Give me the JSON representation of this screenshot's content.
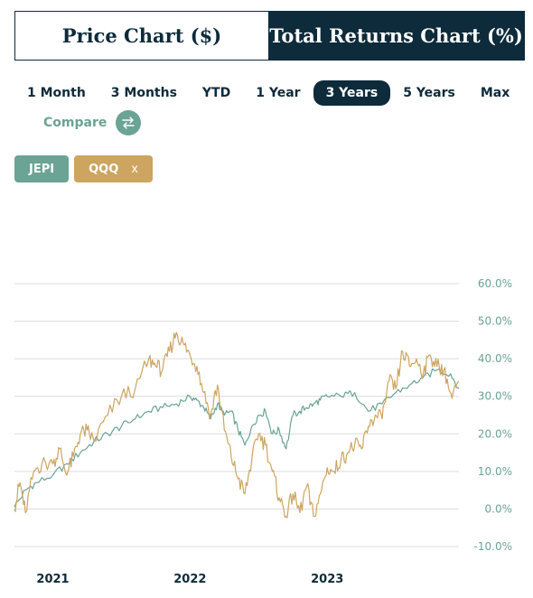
{
  "tabs": {
    "price": "Price Chart ($)",
    "returns": "Total Returns Chart (%)"
  },
  "periods": [
    "1 Month",
    "3 Months",
    "YTD",
    "1 Year",
    "3 Years",
    "5 Years",
    "Max"
  ],
  "active_period": "3 Years",
  "compare": {
    "label": "Compare",
    "icon": "swap-arrows-icon"
  },
  "chips": {
    "jepi": "JEPI",
    "qqq": "QQQ",
    "remove": "x"
  },
  "colors": {
    "navy": "#0d2b3b",
    "jepi": "#6ba394",
    "qqq": "#cda560",
    "grid": "#dcdcdc"
  },
  "chart_data": {
    "type": "line",
    "title": "",
    "xlabel": "",
    "ylabel": "",
    "ylim": [
      -10,
      60
    ],
    "y_ticks": [
      "60.0%",
      "50.0%",
      "40.0%",
      "30.0%",
      "20.0%",
      "10.0%",
      "0.0%",
      "-10.0%"
    ],
    "x_ticks": [
      "2021",
      "2022",
      "2023"
    ],
    "x_tick_positions": [
      2021.0,
      2022.0,
      2023.0
    ],
    "xlim": [
      2020.72,
      2023.96
    ],
    "grid": true,
    "legend": "none",
    "series": [
      {
        "name": "JEPI",
        "color": "#6ba394",
        "x": [
          2020.72,
          2020.8,
          2020.88,
          2021.0,
          2021.1,
          2021.2,
          2021.3,
          2021.4,
          2021.5,
          2021.6,
          2021.7,
          2021.8,
          2021.9,
          2022.0,
          2022.05,
          2022.1,
          2022.15,
          2022.2,
          2022.25,
          2022.3,
          2022.35,
          2022.4,
          2022.45,
          2022.5,
          2022.55,
          2022.6,
          2022.65,
          2022.7,
          2022.75,
          2022.8,
          2022.85,
          2022.9,
          2022.95,
          2023.0,
          2023.1,
          2023.2,
          2023.3,
          2023.4,
          2023.5,
          2023.6,
          2023.7,
          2023.8,
          2023.9,
          2023.96
        ],
        "y": [
          0.5,
          5,
          7,
          9,
          12,
          15,
          18,
          20,
          22,
          24,
          26,
          27,
          28,
          30,
          29,
          27,
          24,
          28,
          25,
          26,
          21,
          17,
          22,
          25,
          26,
          20,
          21,
          16,
          25,
          26,
          27,
          28,
          29,
          30,
          30,
          31,
          26,
          28,
          31,
          33,
          35,
          37,
          36,
          32
        ]
      },
      {
        "name": "QQQ",
        "color": "#cda560",
        "x": [
          2020.72,
          2020.76,
          2020.8,
          2020.86,
          2020.92,
          2021.0,
          2021.05,
          2021.1,
          2021.15,
          2021.2,
          2021.25,
          2021.3,
          2021.4,
          2021.5,
          2021.6,
          2021.7,
          2021.75,
          2021.8,
          2021.85,
          2021.9,
          2021.95,
          2022.0,
          2022.05,
          2022.1,
          2022.15,
          2022.2,
          2022.25,
          2022.3,
          2022.35,
          2022.4,
          2022.45,
          2022.5,
          2022.55,
          2022.6,
          2022.65,
          2022.7,
          2022.75,
          2022.8,
          2022.85,
          2022.9,
          2022.95,
          2023.0,
          2023.05,
          2023.1,
          2023.15,
          2023.2,
          2023.25,
          2023.3,
          2023.35,
          2023.4,
          2023.45,
          2023.5,
          2023.55,
          2023.6,
          2023.65,
          2023.7,
          2023.75,
          2023.8,
          2023.85,
          2023.9,
          2023.96
        ],
        "y": [
          0,
          7,
          -1,
          10,
          12,
          12,
          16,
          9,
          14,
          20,
          21,
          18,
          25,
          30,
          32,
          40,
          38,
          37,
          42,
          47,
          44,
          41,
          38,
          31,
          25,
          33,
          21,
          14,
          8,
          4,
          13,
          20,
          17,
          10,
          3,
          -2,
          4,
          -1,
          6,
          -2,
          4,
          11,
          10,
          13,
          15,
          17,
          16,
          22,
          25,
          24,
          34,
          32,
          42,
          38,
          40,
          36,
          41,
          38,
          37,
          31,
          34
        ]
      }
    ]
  }
}
